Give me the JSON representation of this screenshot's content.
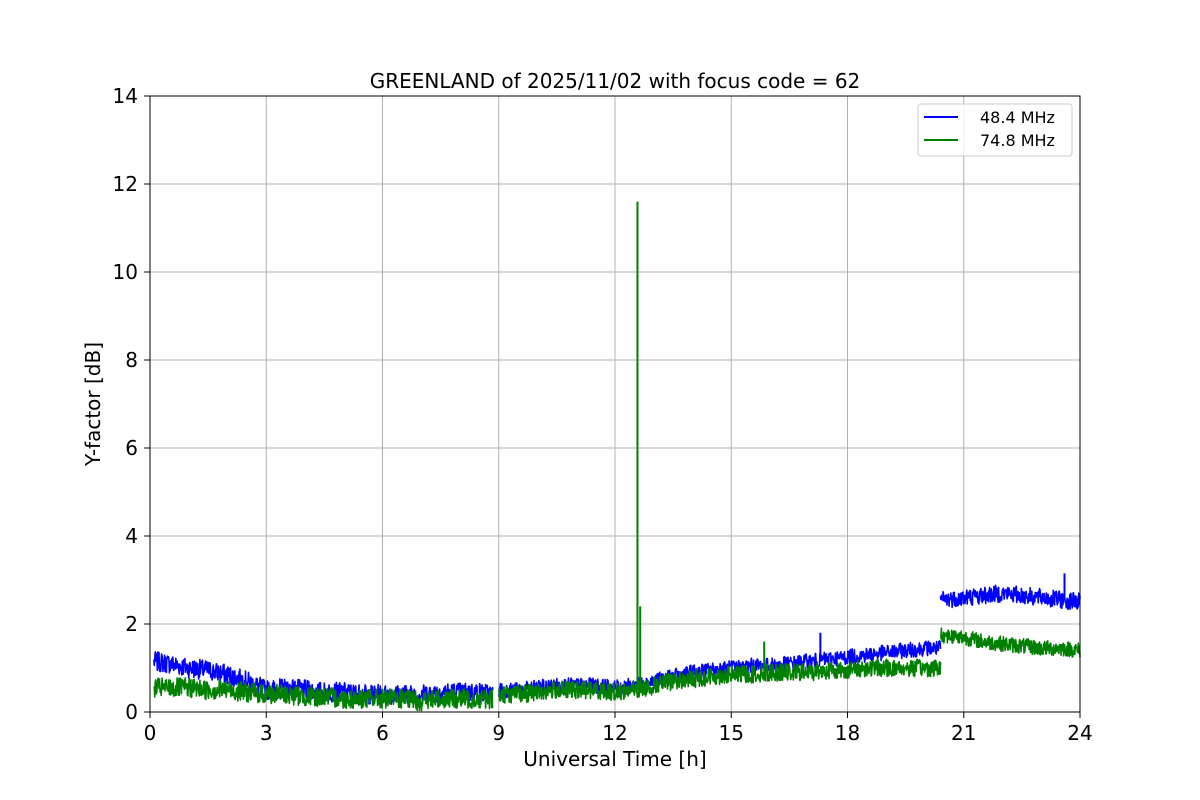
{
  "chart_data": {
    "type": "line",
    "title": "GREENLAND of 2025/11/02 with focus code = 62",
    "xlabel": "Universal Time [h]",
    "ylabel": "Y-factor [dB]",
    "xlim": [
      0,
      24
    ],
    "ylim": [
      0,
      14
    ],
    "xticks": [
      0,
      3,
      6,
      9,
      12,
      15,
      18,
      21,
      24
    ],
    "yticks": [
      0,
      2,
      4,
      6,
      8,
      10,
      12,
      14
    ],
    "grid": true,
    "legend_position": "top-right",
    "series": [
      {
        "name": "48.4 MHz",
        "color": "#0000ff",
        "segments": [
          {
            "x": [
              0.1,
              0.5,
              1.0,
              1.5,
              2.0,
              2.5,
              3.0,
              3.5,
              4.0,
              4.5,
              5.0,
              5.5,
              6.0,
              6.5,
              7.0,
              7.5,
              8.0,
              8.5,
              8.85
            ],
            "y": [
              1.15,
              1.1,
              1.0,
              0.95,
              0.85,
              0.7,
              0.5,
              0.55,
              0.5,
              0.45,
              0.45,
              0.4,
              0.4,
              0.4,
              0.4,
              0.45,
              0.45,
              0.45,
              0.4
            ],
            "band": 0.45
          },
          {
            "x": [
              9.0,
              9.5,
              10.0,
              10.5,
              11.0,
              11.5,
              12.0,
              12.5,
              13.0,
              13.5,
              14.0,
              14.5,
              15.0,
              15.5,
              16.0,
              16.5,
              17.0,
              17.5,
              18.0,
              18.5,
              19.0,
              19.5,
              20.0,
              20.4
            ],
            "y": [
              0.5,
              0.5,
              0.55,
              0.6,
              0.6,
              0.6,
              0.55,
              0.6,
              0.7,
              0.8,
              0.9,
              0.95,
              1.0,
              1.05,
              1.05,
              1.1,
              1.15,
              1.2,
              1.25,
              1.3,
              1.35,
              1.4,
              1.45,
              1.45
            ],
            "band": 0.35
          },
          {
            "x": [
              20.4,
              21.0,
              21.5,
              22.0,
              22.5,
              23.0,
              23.5,
              24.0
            ],
            "y": [
              2.55,
              2.6,
              2.65,
              2.7,
              2.65,
              2.6,
              2.55,
              2.5
            ],
            "band": 0.4
          }
        ],
        "spikes": [
          {
            "x": 17.3,
            "y": 1.8
          },
          {
            "x": 23.6,
            "y": 3.15
          }
        ]
      },
      {
        "name": "74.8 MHz",
        "color": "#008000",
        "segments": [
          {
            "x": [
              0.1,
              0.5,
              1.0,
              1.5,
              2.0,
              2.5,
              3.0,
              3.5,
              4.0,
              4.5,
              5.0,
              5.5,
              6.0,
              6.5,
              7.0,
              7.5,
              8.0,
              8.5,
              8.85
            ],
            "y": [
              0.55,
              0.55,
              0.55,
              0.5,
              0.5,
              0.45,
              0.4,
              0.4,
              0.35,
              0.35,
              0.3,
              0.3,
              0.3,
              0.3,
              0.25,
              0.3,
              0.3,
              0.3,
              0.3
            ],
            "band": 0.45
          },
          {
            "x": [
              9.0,
              9.5,
              10.0,
              10.5,
              11.0,
              11.5,
              12.0,
              12.5,
              13.0,
              13.5,
              14.0,
              14.5,
              15.0,
              15.5,
              16.0,
              16.5,
              17.0,
              17.5,
              18.0,
              18.5,
              19.0,
              19.5,
              20.0,
              20.4
            ],
            "y": [
              0.4,
              0.4,
              0.45,
              0.5,
              0.5,
              0.5,
              0.45,
              0.5,
              0.6,
              0.7,
              0.75,
              0.8,
              0.85,
              0.85,
              0.9,
              0.9,
              0.9,
              0.95,
              0.95,
              1.0,
              1.0,
              1.0,
              1.0,
              1.0
            ],
            "band": 0.4
          },
          {
            "x": [
              20.4,
              21.0,
              21.5,
              22.0,
              22.5,
              23.0,
              23.5,
              24.0
            ],
            "y": [
              1.75,
              1.7,
              1.6,
              1.55,
              1.5,
              1.45,
              1.45,
              1.4
            ],
            "band": 0.35
          }
        ],
        "spikes": [
          {
            "x": 12.58,
            "y": 11.6
          },
          {
            "x": 12.65,
            "y": 2.4
          },
          {
            "x": 15.85,
            "y": 1.6
          }
        ]
      }
    ]
  }
}
